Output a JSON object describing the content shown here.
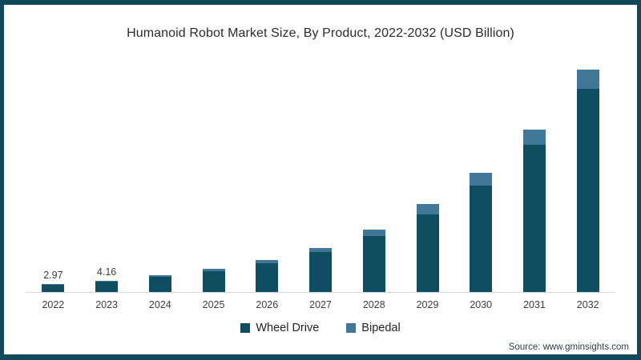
{
  "frame": {
    "border_color": "#11485C",
    "background_color": "#ffffff"
  },
  "source_note": "Source: www.gminsights.com",
  "chart_data": {
    "type": "bar",
    "stacked": true,
    "title": "Humanoid Robot Market Size, By Product, 2022-2032 (USD Billion)",
    "xlabel": "",
    "ylabel": "",
    "ylim": [
      0,
      85
    ],
    "grid": false,
    "y_axis_visible": false,
    "legend_position": "bottom-center",
    "categories": [
      "2022",
      "2023",
      "2024",
      "2025",
      "2026",
      "2027",
      "2028",
      "2029",
      "2030",
      "2031",
      "2032"
    ],
    "series": [
      {
        "name": "Wheel Drive",
        "color": "#0F4D60",
        "values": [
          2.67,
          3.74,
          5.5,
          7.4,
          10.4,
          14.5,
          20.5,
          28.1,
          38.6,
          53.5,
          73.9
        ]
      },
      {
        "name": "Bipedal",
        "color": "#41789A",
        "values": [
          0.3,
          0.42,
          0.6,
          0.9,
          1.2,
          1.5,
          2.3,
          3.8,
          4.6,
          5.5,
          7.0
        ]
      }
    ],
    "totals": [
      2.97,
      4.16,
      6.1,
      8.3,
      11.6,
      16.0,
      22.8,
      31.9,
      43.2,
      59.0,
      80.9
    ],
    "bar_labels": [
      "2.97",
      "4.16",
      "",
      "",
      "",
      "",
      "",
      "",
      "",
      "",
      ""
    ]
  }
}
